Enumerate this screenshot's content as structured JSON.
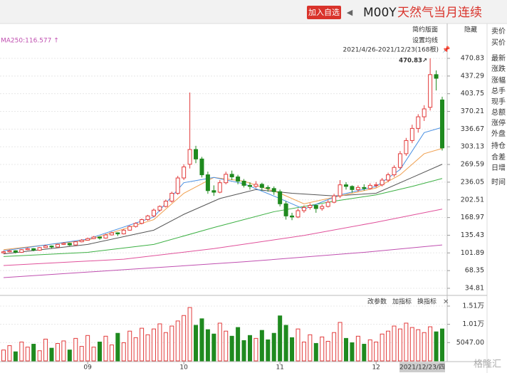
{
  "header": {
    "button": "加入自选",
    "arrow": "◀",
    "symbol": "M00Y",
    "name": "天然气当月连续"
  },
  "side_labels": [
    "卖价",
    "买价",
    "最新",
    "涨跌",
    "涨幅",
    "总手",
    "现手",
    "总额",
    "涨停",
    "外盘",
    "持仓",
    "合差",
    "日增",
    "时间"
  ],
  "toolbar": {
    "simple": "简约版面",
    "hide": "隐藏",
    "set_ma": "设置均线",
    "range": "2021/4/26-2021/12/23(168根)"
  },
  "volume_toolbar": [
    "改参数",
    "加指标",
    "换指标"
  ],
  "watermark": "格隆汇",
  "chart_data": {
    "type": "candlestick",
    "ma_label": "MA250:116.577 ↑",
    "annotation": {
      "index": 71,
      "label": "470.83↗"
    },
    "categories": [
      null,
      null,
      null,
      null,
      null,
      null,
      null,
      null,
      null,
      null,
      null,
      null,
      null,
      null,
      "09",
      null,
      null,
      null,
      null,
      null,
      null,
      null,
      null,
      null,
      null,
      null,
      null,
      null,
      null,
      null,
      "10",
      null,
      null,
      null,
      null,
      null,
      null,
      null,
      null,
      null,
      null,
      null,
      null,
      null,
      null,
      null,
      "11",
      null,
      null,
      null,
      null,
      null,
      null,
      null,
      null,
      null,
      null,
      null,
      null,
      null,
      null,
      null,
      "12",
      null,
      null,
      null,
      null,
      null,
      null,
      null,
      null,
      null,
      null,
      "2021/12/23/四"
    ],
    "candles": [
      [
        102,
        106,
        101,
        104
      ],
      [
        104,
        108,
        103,
        106
      ],
      [
        106,
        107,
        101,
        103
      ],
      [
        103,
        109,
        102,
        108
      ],
      [
        108,
        112,
        107,
        110
      ],
      [
        110,
        111,
        105,
        107
      ],
      [
        107,
        113,
        106,
        112
      ],
      [
        112,
        117,
        111,
        115
      ],
      [
        115,
        116,
        111,
        113
      ],
      [
        113,
        119,
        112,
        118
      ],
      [
        118,
        122,
        117,
        120
      ],
      [
        120,
        121,
        115,
        117
      ],
      [
        117,
        124,
        116,
        123
      ],
      [
        123,
        128,
        122,
        126
      ],
      [
        126,
        131,
        125,
        129
      ],
      [
        129,
        134,
        128,
        132
      ],
      [
        132,
        133,
        127,
        130
      ],
      [
        130,
        138,
        129,
        136
      ],
      [
        136,
        142,
        135,
        140
      ],
      [
        140,
        141,
        134,
        138
      ],
      [
        138,
        147,
        137,
        145
      ],
      [
        145,
        154,
        144,
        152
      ],
      [
        152,
        160,
        150,
        158
      ],
      [
        158,
        167,
        156,
        165
      ],
      [
        165,
        174,
        163,
        172
      ],
      [
        172,
        186,
        170,
        183
      ],
      [
        183,
        192,
        180,
        190
      ],
      [
        190,
        203,
        188,
        200
      ],
      [
        200,
        218,
        197,
        215
      ],
      [
        215,
        248,
        212,
        244
      ],
      [
        244,
        270,
        240,
        265
      ],
      [
        270,
        406,
        262,
        298
      ],
      [
        298,
        305,
        272,
        280
      ],
      [
        280,
        284,
        245,
        250
      ],
      [
        250,
        256,
        214,
        220
      ],
      [
        220,
        230,
        210,
        217
      ],
      [
        217,
        240,
        215,
        235
      ],
      [
        235,
        256,
        232,
        251
      ],
      [
        251,
        258,
        240,
        246
      ],
      [
        246,
        250,
        232,
        238
      ],
      [
        238,
        242,
        226,
        230
      ],
      [
        230,
        236,
        222,
        228
      ],
      [
        228,
        238,
        225,
        232
      ],
      [
        232,
        235,
        220,
        226
      ],
      [
        226,
        230,
        218,
        224
      ],
      [
        224,
        228,
        212,
        218
      ],
      [
        218,
        222,
        190,
        195
      ],
      [
        195,
        200,
        165,
        172
      ],
      [
        172,
        178,
        164,
        170
      ],
      [
        170,
        186,
        168,
        182
      ],
      [
        182,
        192,
        178,
        188
      ],
      [
        188,
        196,
        184,
        192
      ],
      [
        192,
        194,
        178,
        186
      ],
      [
        186,
        194,
        182,
        190
      ],
      [
        190,
        202,
        188,
        198
      ],
      [
        198,
        214,
        196,
        210
      ],
      [
        210,
        240,
        206,
        231
      ],
      [
        231,
        236,
        222,
        228
      ],
      [
        228,
        230,
        216,
        222
      ],
      [
        222,
        230,
        218,
        226
      ],
      [
        226,
        232,
        220,
        224
      ],
      [
        224,
        234,
        222,
        230
      ],
      [
        230,
        236,
        226,
        231
      ],
      [
        231,
        244,
        228,
        240
      ],
      [
        240,
        254,
        236,
        250
      ],
      [
        250,
        268,
        246,
        264
      ],
      [
        264,
        295,
        260,
        290
      ],
      [
        290,
        320,
        286,
        315
      ],
      [
        315,
        345,
        310,
        338
      ],
      [
        338,
        365,
        330,
        360
      ],
      [
        360,
        382,
        352,
        375
      ],
      [
        378,
        470.83,
        372,
        440
      ],
      [
        440,
        448,
        410,
        433
      ],
      [
        392,
        398,
        296,
        301
      ]
    ],
    "volumes": [
      3000,
      4200,
      2500,
      5200,
      3800,
      4600,
      2800,
      6000,
      3500,
      4800,
      5500,
      3000,
      6200,
      4000,
      7000,
      3800,
      5200,
      6800,
      4400,
      7600,
      5000,
      8200,
      6400,
      9000,
      7200,
      8800,
      10200,
      7800,
      9600,
      11000,
      12500,
      14700,
      9800,
      11600,
      8600,
      7400,
      10400,
      8200,
      6800,
      9200,
      5600,
      7000,
      6200,
      8400,
      5800,
      7600,
      12400,
      9800,
      6400,
      8800,
      5200,
      7200,
      4800,
      6600,
      5400,
      7800,
      10600,
      6200,
      5000,
      6800,
      4600,
      5800,
      5200,
      7400,
      8200,
      9600,
      8800,
      10400,
      9200,
      8600,
      7800,
      9400,
      8000,
      8800
    ],
    "lines": [
      {
        "color": "#c04fb0",
        "x": [
          0,
          20,
          40,
          60,
          73
        ],
        "values": [
          55,
          70,
          85,
          103,
          117
        ]
      },
      {
        "color": "#e0509a",
        "x": [
          0,
          20,
          35,
          50,
          62,
          73
        ],
        "values": [
          78,
          90,
          110,
          135,
          160,
          185
        ]
      },
      {
        "color": "#3cb043",
        "x": [
          0,
          14,
          25,
          35,
          45,
          55,
          62,
          68,
          73
        ],
        "values": [
          95,
          103,
          118,
          150,
          180,
          200,
          212,
          228,
          243
        ]
      },
      {
        "color": "#555555",
        "x": [
          0,
          14,
          25,
          30,
          36,
          42,
          48,
          55,
          62,
          68,
          73
        ],
        "values": [
          100,
          118,
          145,
          175,
          205,
          222,
          215,
          210,
          215,
          245,
          270
        ]
      },
      {
        "color": "#f0a050",
        "x": [
          0,
          14,
          25,
          30,
          35,
          40,
          46,
          50,
          56,
          62,
          66,
          70,
          73
        ],
        "values": [
          108,
          126,
          165,
          215,
          245,
          238,
          215,
          195,
          210,
          225,
          250,
          290,
          300
        ]
      },
      {
        "color": "#4a90e2",
        "x": [
          0,
          14,
          25,
          30,
          35,
          40,
          46,
          50,
          56,
          62,
          66,
          70,
          73
        ],
        "values": [
          106,
          128,
          170,
          235,
          245,
          233,
          205,
          185,
          212,
          228,
          260,
          330,
          340
        ]
      }
    ],
    "up_color": "#e23b3b",
    "down_color": "#1f8a1f",
    "ylim": [
      21.3,
      497.8
    ],
    "yticks": [
      470.83,
      437.29,
      403.75,
      370.21,
      336.67,
      303.13,
      269.59,
      236.05,
      202.51,
      168.97,
      135.43,
      101.89,
      68.35,
      34.81
    ],
    "vlim": [
      0,
      17450
    ],
    "vticks": [
      {
        "value": 15100,
        "label": "1.51万"
      },
      {
        "value": 10100,
        "label": "1.01万"
      },
      {
        "value": 5047,
        "label": "5047.00"
      }
    ],
    "grid": true
  }
}
